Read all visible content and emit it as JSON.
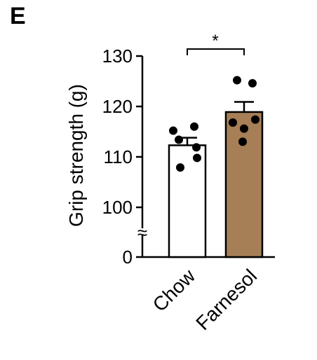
{
  "panel_label": "E",
  "chart_data": {
    "type": "bar",
    "categories": [
      "Chow",
      "Farnesol"
    ],
    "values": [
      112.3,
      118.9
    ],
    "errors": [
      1.5,
      2.0
    ],
    "points": [
      [
        115.2,
        116.0,
        113.4,
        111.9,
        109.8,
        107.9
      ],
      [
        125.2,
        124.6,
        116.8,
        117.4,
        115.6,
        113.0
      ]
    ],
    "bar_colors": [
      "#ffffff",
      "#a67f56"
    ],
    "ylabel": "Grip strength (g)",
    "ylim": [
      100,
      130
    ],
    "yticks": [
      0,
      100,
      110,
      120,
      130
    ],
    "axis_break": "≈",
    "significance": "*",
    "grid": false,
    "legend": "none"
  }
}
